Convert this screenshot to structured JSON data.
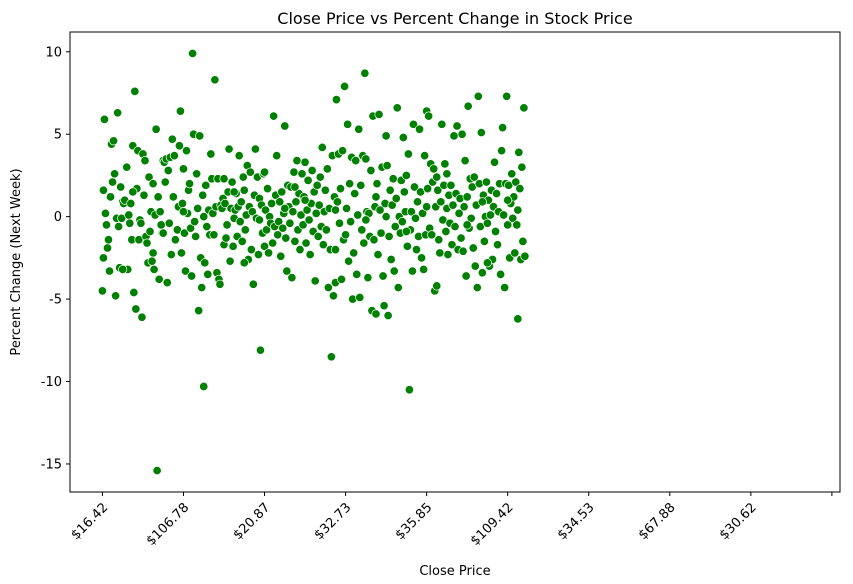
{
  "chart_data": {
    "type": "scatter",
    "title": "Close Price vs Percent Change in Stock Price",
    "xlabel": "Close Price",
    "ylabel": "Percent Change (Next Week)",
    "x_tick_labels": [
      "$16.42",
      "$106.78",
      "$20.87",
      "$32.73",
      "$35.85",
      "$109.42",
      "$34.53",
      "$67.88",
      "$30.62",
      ""
    ],
    "x_tick_index": [
      0,
      80,
      160,
      240,
      320,
      400,
      480,
      560,
      640,
      720
    ],
    "xlim": [
      -32,
      728
    ],
    "yticks": [
      -15,
      -10,
      -5,
      0,
      5,
      10
    ],
    "ylim": [
      -16.7,
      11.2
    ],
    "grid": false,
    "marker_color": "#008000",
    "marker_edge_color": "#ffffff",
    "points": [
      [
        0,
        -4.5
      ],
      [
        1,
        -2.5
      ],
      [
        1,
        1.6
      ],
      [
        2,
        5.9
      ],
      [
        3,
        0.2
      ],
      [
        4,
        -0.5
      ],
      [
        5,
        -1.9
      ],
      [
        6,
        -1.4
      ],
      [
        7,
        -3.3
      ],
      [
        8,
        1.2
      ],
      [
        9,
        4.4
      ],
      [
        10,
        2.1
      ],
      [
        11,
        4.6
      ],
      [
        12,
        2.6
      ],
      [
        13,
        -4.8
      ],
      [
        14,
        -0.1
      ],
      [
        15,
        6.3
      ],
      [
        16,
        -0.6
      ],
      [
        17,
        -3.1
      ],
      [
        18,
        1.8
      ],
      [
        19,
        -0.1
      ],
      [
        20,
        0.9
      ],
      [
        21,
        0.8
      ],
      [
        22,
        1.0
      ],
      [
        24,
        3.0
      ],
      [
        25,
        -3.2
      ],
      [
        26,
        0.1
      ],
      [
        27,
        -0.4
      ],
      [
        28,
        0.8
      ],
      [
        29,
        -1.4
      ],
      [
        30,
        4.3
      ],
      [
        31,
        -4.6
      ],
      [
        32,
        7.6
      ],
      [
        33,
        -5.6
      ],
      [
        34,
        1.7
      ],
      [
        35,
        4.0
      ],
      [
        36,
        -1.4
      ],
      [
        37,
        -0.2
      ],
      [
        38,
        -0.4
      ],
      [
        39,
        -6.1
      ],
      [
        40,
        3.8
      ],
      [
        41,
        1.3
      ],
      [
        42,
        3.4
      ],
      [
        43,
        -1.2
      ],
      [
        44,
        -1.6
      ],
      [
        45,
        -2.8
      ],
      [
        46,
        2.4
      ],
      [
        47,
        -0.9
      ],
      [
        48,
        0.3
      ],
      [
        49,
        -2.7
      ],
      [
        50,
        2.0
      ],
      [
        51,
        -3.2
      ],
      [
        52,
        0.1
      ],
      [
        53,
        5.3
      ],
      [
        54,
        -15.4
      ],
      [
        55,
        1.2
      ],
      [
        56,
        -3.8
      ],
      [
        57,
        0.3
      ],
      [
        58,
        -0.5
      ],
      [
        59,
        -1.0
      ],
      [
        60,
        3.4
      ],
      [
        61,
        3.3
      ],
      [
        62,
        2.1
      ],
      [
        63,
        3.5
      ],
      [
        64,
        -4.0
      ],
      [
        65,
        2.8
      ],
      [
        66,
        -0.4
      ],
      [
        67,
        3.6
      ],
      [
        68,
        -2.3
      ],
      [
        69,
        4.7
      ],
      [
        70,
        1.2
      ],
      [
        71,
        3.7
      ],
      [
        72,
        -1.4
      ],
      [
        74,
        -0.8
      ],
      [
        75,
        0.6
      ],
      [
        76,
        4.3
      ],
      [
        77,
        6.4
      ],
      [
        78,
        -2.2
      ],
      [
        79,
        0.8
      ],
      [
        80,
        2.9
      ],
      [
        81,
        -1.0
      ],
      [
        82,
        -3.3
      ],
      [
        83,
        4.0
      ],
      [
        84,
        0.2
      ],
      [
        85,
        1.6
      ],
      [
        86,
        2.0
      ],
      [
        87,
        -0.7
      ],
      [
        88,
        -3.6
      ],
      [
        89,
        9.9
      ],
      [
        90,
        5.0
      ],
      [
        91,
        -0.3
      ],
      [
        92,
        -1.2
      ],
      [
        93,
        2.6
      ],
      [
        94,
        0.5
      ],
      [
        95,
        -5.7
      ],
      [
        96,
        4.9
      ],
      [
        97,
        -2.5
      ],
      [
        98,
        -4.3
      ],
      [
        99,
        1.3
      ],
      [
        100,
        -10.3
      ],
      [
        101,
        -2.8
      ],
      [
        102,
        1.9
      ],
      [
        103,
        -0.6
      ],
      [
        104,
        -3.5
      ],
      [
        105,
        0.4
      ],
      [
        106,
        -1.1
      ],
      [
        107,
        3.8
      ],
      [
        108,
        2.3
      ],
      [
        109,
        0.2
      ],
      [
        110,
        -1.1
      ],
      [
        111,
        8.3
      ],
      [
        112,
        0.6
      ],
      [
        113,
        -3.4
      ],
      [
        114,
        2.3
      ],
      [
        115,
        -3.8
      ],
      [
        116,
        -4.1
      ],
      [
        117,
        0.7
      ],
      [
        118,
        0.5
      ],
      [
        119,
        1.1
      ],
      [
        120,
        -1.7
      ],
      [
        121,
        0.8
      ],
      [
        122,
        -1.3
      ],
      [
        123,
        -0.5
      ],
      [
        124,
        1.5
      ],
      [
        125,
        4.1
      ],
      [
        126,
        -2.7
      ],
      [
        127,
        0.5
      ],
      [
        128,
        2.1
      ],
      [
        129,
        -1.8
      ],
      [
        130,
        -0.1
      ],
      [
        131,
        0.4
      ],
      [
        132,
        1.4
      ],
      [
        133,
        -1.2
      ],
      [
        134,
        0.6
      ],
      [
        135,
        3.7
      ],
      [
        136,
        -0.3
      ],
      [
        137,
        0.9
      ],
      [
        138,
        -1.5
      ],
      [
        139,
        2.4
      ],
      [
        140,
        1.6
      ],
      [
        141,
        -0.8
      ],
      [
        142,
        0.1
      ],
      [
        143,
        3.1
      ],
      [
        144,
        -2.6
      ],
      [
        145,
        0.6
      ],
      [
        146,
        2.7
      ],
      [
        147,
        -2.0
      ],
      [
        148,
        0.3
      ],
      [
        149,
        -4.1
      ],
      [
        150,
        1.3
      ],
      [
        151,
        4.1
      ],
      [
        152,
        -0.1
      ],
      [
        153,
        2.4
      ],
      [
        154,
        -2.3
      ],
      [
        155,
        1.1
      ],
      [
        156,
        -8.1
      ],
      [
        157,
        0.7
      ],
      [
        158,
        -1.0
      ],
      [
        159,
        2.6
      ],
      [
        160,
        -1.8
      ],
      [
        161,
        0.4
      ],
      [
        162,
        -0.8
      ],
      [
        163,
        1.7
      ],
      [
        164,
        -2.2
      ],
      [
        165,
        0.0
      ],
      [
        166,
        -0.4
      ],
      [
        167,
        0.8
      ],
      [
        168,
        -1.6
      ],
      [
        169,
        6.1
      ],
      [
        170,
        -0.6
      ],
      [
        171,
        1.3
      ],
      [
        172,
        3.7
      ],
      [
        173,
        -1.1
      ],
      [
        174,
        -0.3
      ],
      [
        175,
        0.9
      ],
      [
        176,
        -2.4
      ],
      [
        177,
        1.5
      ],
      [
        178,
        -0.7
      ],
      [
        179,
        0.2
      ],
      [
        180,
        5.5
      ],
      [
        181,
        -1.3
      ],
      [
        182,
        -3.3
      ],
      [
        183,
        1.9
      ],
      [
        184,
        0.6
      ],
      [
        185,
        -0.4
      ],
      [
        186,
        1.8
      ],
      [
        187,
        -3.7
      ],
      [
        188,
        0.3
      ],
      [
        189,
        2.7
      ],
      [
        190,
        -1.5
      ],
      [
        191,
        0.9
      ],
      [
        192,
        3.4
      ],
      [
        193,
        -0.8
      ],
      [
        194,
        1.4
      ],
      [
        195,
        -2.0
      ],
      [
        196,
        0.1
      ],
      [
        197,
        2.6
      ],
      [
        198,
        -0.5
      ],
      [
        199,
        1.2
      ],
      [
        200,
        3.3
      ],
      [
        201,
        -1.6
      ],
      [
        202,
        0.4
      ],
      [
        203,
        2.2
      ],
      [
        204,
        -0.2
      ],
      [
        205,
        -2.3
      ],
      [
        206,
        0.8
      ],
      [
        207,
        2.8
      ],
      [
        208,
        -0.9
      ],
      [
        209,
        1.5
      ],
      [
        210,
        -3.9
      ],
      [
        211,
        0.2
      ],
      [
        212,
        1.9
      ],
      [
        213,
        -1.2
      ],
      [
        214,
        0.7
      ],
      [
        215,
        2.4
      ],
      [
        216,
        -0.6
      ],
      [
        217,
        4.2
      ],
      [
        218,
        -1.7
      ],
      [
        219,
        0.3
      ],
      [
        220,
        1.6
      ],
      [
        221,
        -0.8
      ],
      [
        222,
        2.9
      ],
      [
        223,
        -4.3
      ],
      [
        224,
        0.5
      ],
      [
        225,
        -2.0
      ],
      [
        226,
        -8.5
      ],
      [
        227,
        3.7
      ],
      [
        228,
        -4.8
      ],
      [
        229,
        1.2
      ],
      [
        230,
        -4.0
      ],
      [
        231,
        7.1
      ],
      [
        232,
        0.9
      ],
      [
        233,
        3.8
      ],
      [
        234,
        -0.4
      ],
      [
        235,
        1.7
      ],
      [
        236,
        -3.8
      ],
      [
        237,
        4.0
      ],
      [
        238,
        -1.4
      ],
      [
        239,
        7.9
      ],
      [
        240,
        -1.1
      ],
      [
        241,
        0.5
      ],
      [
        242,
        5.6
      ],
      [
        243,
        -2.7
      ],
      [
        244,
        2.0
      ],
      [
        245,
        -0.3
      ],
      [
        246,
        3.6
      ],
      [
        247,
        -5.0
      ],
      [
        248,
        -2.2
      ],
      [
        249,
        1.4
      ],
      [
        250,
        3.4
      ],
      [
        251,
        -3.5
      ],
      [
        252,
        0.1
      ],
      [
        253,
        5.3
      ],
      [
        254,
        -4.9
      ],
      [
        255,
        1.9
      ],
      [
        256,
        -0.8
      ],
      [
        257,
        3.7
      ],
      [
        258,
        -1.6
      ],
      [
        259,
        8.7
      ],
      [
        260,
        3.5
      ],
      [
        261,
        0.3
      ],
      [
        262,
        -3.7
      ],
      [
        263,
        0.2
      ],
      [
        264,
        -1.2
      ],
      [
        265,
        2.8
      ],
      [
        266,
        -5.7
      ],
      [
        267,
        6.1
      ],
      [
        268,
        -1.4
      ],
      [
        269,
        0.6
      ],
      [
        270,
        -5.9
      ],
      [
        271,
        2.0
      ],
      [
        272,
        -2.3
      ],
      [
        273,
        6.2
      ],
      [
        274,
        0.4
      ],
      [
        275,
        -1.0
      ],
      [
        276,
        3.0
      ],
      [
        277,
        -3.6
      ],
      [
        278,
        -5.4
      ],
      [
        279,
        0.8
      ],
      [
        280,
        4.9
      ],
      [
        281,
        3.1
      ],
      [
        282,
        -6.0
      ],
      [
        283,
        -1.2
      ],
      [
        284,
        1.6
      ],
      [
        285,
        -2.6
      ],
      [
        286,
        0.7
      ],
      [
        287,
        2.3
      ],
      [
        288,
        -3.3
      ],
      [
        289,
        -0.6
      ],
      [
        290,
        1.1
      ],
      [
        291,
        6.6
      ],
      [
        292,
        -4.3
      ],
      [
        293,
        0.0
      ],
      [
        294,
        -1.0
      ],
      [
        295,
        2.2
      ],
      [
        296,
        -0.3
      ],
      [
        297,
        4.8
      ],
      [
        298,
        1.5
      ],
      [
        299,
        0.3
      ],
      [
        300,
        2.5
      ],
      [
        301,
        -1.8
      ],
      [
        302,
        3.8
      ],
      [
        303,
        -10.5
      ],
      [
        304,
        -0.8
      ],
      [
        305,
        0.3
      ],
      [
        306,
        -3.3
      ],
      [
        307,
        5.6
      ],
      [
        308,
        1.8
      ],
      [
        309,
        -0.1
      ],
      [
        310,
        -2.0
      ],
      [
        311,
        0.9
      ],
      [
        312,
        -1.2
      ],
      [
        313,
        5.3
      ],
      [
        314,
        1.5
      ],
      [
        315,
        -2.5
      ],
      [
        316,
        0.2
      ],
      [
        317,
        -3.2
      ],
      [
        318,
        3.7
      ],
      [
        319,
        -1.1
      ],
      [
        320,
        6.4
      ],
      [
        321,
        1.7
      ],
      [
        322,
        6.1
      ],
      [
        323,
        -0.7
      ],
      [
        324,
        3.2
      ],
      [
        325,
        -1.1
      ],
      [
        326,
        2.1
      ],
      [
        327,
        2.9
      ],
      [
        328,
        -4.5
      ],
      [
        329,
        0.6
      ],
      [
        330,
        -4.2
      ],
      [
        331,
        1.6
      ],
      [
        332,
        -1.4
      ],
      [
        333,
        -2.2
      ],
      [
        334,
        0.9
      ],
      [
        335,
        5.6
      ],
      [
        336,
        -0.2
      ],
      [
        337,
        1.9
      ],
      [
        338,
        3.2
      ],
      [
        339,
        -0.9
      ],
      [
        340,
        0.5
      ],
      [
        341,
        -2.3
      ],
      [
        342,
        1.3
      ],
      [
        343,
        -0.4
      ],
      [
        344,
        1.9
      ],
      [
        345,
        -1.7
      ],
      [
        346,
        0.7
      ],
      [
        347,
        4.9
      ],
      [
        348,
        -0.6
      ],
      [
        349,
        1.4
      ],
      [
        350,
        5.5
      ],
      [
        351,
        -2.0
      ],
      [
        352,
        0.2
      ],
      [
        353,
        1.1
      ],
      [
        354,
        -1.3
      ],
      [
        355,
        5.0
      ],
      [
        356,
        -2.1
      ],
      [
        357,
        0.6
      ],
      [
        358,
        3.4
      ],
      [
        359,
        -3.6
      ],
      [
        360,
        1.2
      ],
      [
        361,
        6.7
      ],
      [
        362,
        -0.7
      ],
      [
        363,
        2.3
      ],
      [
        364,
        -0.1
      ],
      [
        365,
        1.8
      ],
      [
        366,
        -1.9
      ],
      [
        367,
        2.4
      ],
      [
        368,
        -3.0
      ],
      [
        369,
        0.7
      ],
      [
        370,
        -4.3
      ],
      [
        371,
        7.3
      ],
      [
        372,
        2.0
      ],
      [
        373,
        -0.6
      ],
      [
        374,
        5.1
      ],
      [
        375,
        -3.4
      ],
      [
        376,
        1.3
      ],
      [
        377,
        -1.5
      ],
      [
        378,
        0.0
      ],
      [
        379,
        2.1
      ],
      [
        380,
        -0.4
      ],
      [
        381,
        1.0
      ],
      [
        382,
        -3.0
      ],
      [
        383,
        0.1
      ],
      [
        384,
        1.6
      ],
      [
        385,
        -2.6
      ],
      [
        386,
        0.6
      ],
      [
        387,
        3.3
      ],
      [
        388,
        -0.9
      ],
      [
        389,
        1.4
      ],
      [
        390,
        -1.7
      ],
      [
        391,
        0.3
      ],
      [
        392,
        2.0
      ],
      [
        393,
        -3.5
      ],
      [
        394,
        4.0
      ],
      [
        395,
        5.4
      ],
      [
        396,
        0.1
      ],
      [
        397,
        -4.3
      ],
      [
        398,
        2.0
      ],
      [
        399,
        7.3
      ],
      [
        400,
        -0.5
      ],
      [
        401,
        1.9
      ],
      [
        402,
        -2.5
      ],
      [
        403,
        0.8
      ],
      [
        404,
        2.6
      ],
      [
        405,
        -0.1
      ],
      [
        406,
        1.2
      ],
      [
        407,
        -2.2
      ],
      [
        408,
        2.1
      ],
      [
        409,
        -0.5
      ],
      [
        410,
        -6.2
      ],
      [
        411,
        3.9
      ],
      [
        412,
        1.7
      ],
      [
        413,
        -2.6
      ],
      [
        414,
        3.0
      ],
      [
        415,
        -1.5
      ],
      [
        416,
        6.6
      ],
      [
        417,
        -2.4
      ],
      [
        20,
        -3.2
      ],
      [
        60,
        -1.0
      ],
      [
        120,
        2.3
      ],
      [
        155,
        -0.2
      ],
      [
        190,
        1.8
      ],
      [
        230,
        0.4
      ],
      [
        270,
        1.2
      ],
      [
        300,
        -0.9
      ],
      [
        340,
        2.6
      ],
      [
        375,
        0.9
      ],
      [
        410,
        0.4
      ],
      [
        100,
        0.0
      ],
      [
        50,
        -2.2
      ],
      [
        140,
        -2.8
      ],
      [
        200,
        1.0
      ],
      [
        260,
        -0.2
      ],
      [
        320,
        0.6
      ],
      [
        380,
        -2.8
      ],
      [
        80,
        0.3
      ],
      [
        180,
        0.5
      ],
      [
        280,
        0.0
      ],
      [
        360,
        -0.5
      ],
      [
        400,
        1.0
      ],
      [
        30,
        1.5
      ],
      [
        130,
        1.5
      ],
      [
        230,
        -2.0
      ],
      [
        330,
        2.4
      ],
      [
        160,
        2.7
      ]
    ]
  }
}
